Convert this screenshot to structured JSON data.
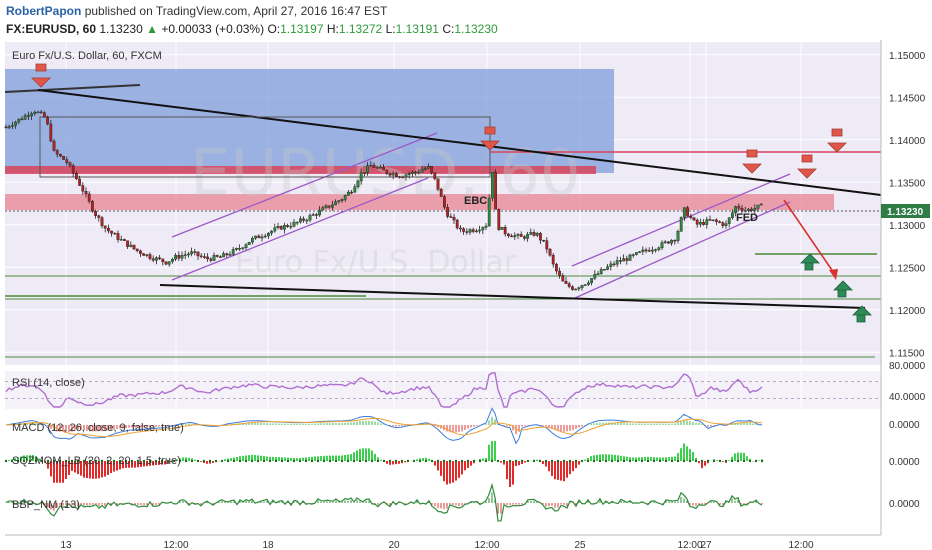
{
  "header": {
    "author": "RobertPapon",
    "published_text": "published on TradingView.com, April 27, 2016 16:47 EST",
    "symbol_interval": "FX:EURUSD, 60",
    "last": "1.13230",
    "change": "+0.00033 (+0.03%)",
    "o_label": "O:",
    "o_value": "1.13197",
    "h_label": "H:",
    "h_value": "1.13272",
    "l_label": "L:",
    "l_value": "1.13191",
    "c_label": "C:",
    "c_value": "1.13230"
  },
  "main_pane": {
    "title": "Euro Fx/U.S. Dollar, 60, FXCM",
    "watermark_symbol": "EURUSD, 60",
    "watermark_name": "Euro Fx/U.S. Dollar",
    "price_ticks": [
      "1.15000",
      "1.14500",
      "1.14000",
      "1.13500",
      "1.13000",
      "1.12500",
      "1.12000",
      "1.11500"
    ],
    "last_price_tag": "1.13230",
    "annotations": [
      "EBC",
      "FED"
    ]
  },
  "indicators": [
    {
      "label": "RSI (14, close)",
      "ticks": [
        "80.0000",
        "40.0000"
      ]
    },
    {
      "label": "MACD (12, 26, close, 9, false, true)",
      "ticks": [
        "0.0000"
      ]
    },
    {
      "label": "SQZMOM_LB (20, 2, 20, 1.5, true)",
      "ticks": [
        "0.0000"
      ]
    },
    {
      "label": "BBP_NM (13)",
      "ticks": [
        "0.0000"
      ]
    }
  ],
  "time_axis": [
    "13",
    "12:00",
    "18",
    "12:00",
    "20",
    "12:00",
    "25",
    "12:00",
    "27",
    "12:00"
  ],
  "colors": {
    "up_candle": "#2e8b3a",
    "down_candle": "#b22222",
    "blue_zone": "#7f9edb",
    "red_zone": "#d9455b",
    "pink_zone": "#e88a99",
    "trendline": "#111111",
    "channel": "#9b59c6",
    "arrow_down": "#e0574a",
    "arrow_up": "#2e8b57",
    "rsi": "#b06fd0",
    "macd": "#3b7dd8",
    "signal": "#f0a030"
  },
  "chart_data": {
    "type": "candlestick",
    "symbol": "FX:EURUSD",
    "interval": "60",
    "ylim": [
      1.1135,
      1.1515
    ],
    "x_labels": [
      "13",
      "12:00",
      "18",
      "12:00",
      "20",
      "12:00",
      "25",
      "12:00",
      "27",
      "12:00"
    ],
    "path_keypoints": [
      [
        0,
        1.1415
      ],
      [
        15,
        1.1425
      ],
      [
        28,
        1.1435
      ],
      [
        40,
        1.1425
      ],
      [
        48,
        1.1385
      ],
      [
        60,
        1.1375
      ],
      [
        75,
        1.1345
      ],
      [
        88,
        1.1315
      ],
      [
        100,
        1.1295
      ],
      [
        115,
        1.1282
      ],
      [
        130,
        1.127
      ],
      [
        145,
        1.1262
      ],
      [
        160,
        1.1256
      ],
      [
        170,
        1.1262
      ],
      [
        185,
        1.1267
      ],
      [
        200,
        1.126
      ],
      [
        215,
        1.1262
      ],
      [
        230,
        1.127
      ],
      [
        245,
        1.1282
      ],
      [
        260,
        1.129
      ],
      [
        275,
        1.1297
      ],
      [
        290,
        1.1302
      ],
      [
        305,
        1.131
      ],
      [
        320,
        1.132
      ],
      [
        335,
        1.133
      ],
      [
        345,
        1.134
      ],
      [
        355,
        1.136
      ],
      [
        365,
        1.137
      ],
      [
        380,
        1.1362
      ],
      [
        395,
        1.1358
      ],
      [
        410,
        1.1362
      ],
      [
        422,
        1.1368
      ],
      [
        430,
        1.135
      ],
      [
        440,
        1.1315
      ],
      [
        455,
        1.1292
      ],
      [
        470,
        1.1295
      ],
      [
        480,
        1.13
      ],
      [
        488,
        1.138
      ],
      [
        490,
        1.13
      ],
      [
        500,
        1.129
      ],
      [
        515,
        1.1285
      ],
      [
        530,
        1.129
      ],
      [
        540,
        1.1275
      ],
      [
        548,
        1.125
      ],
      [
        558,
        1.123
      ],
      [
        568,
        1.1225
      ],
      [
        580,
        1.1232
      ],
      [
        595,
        1.1245
      ],
      [
        610,
        1.1256
      ],
      [
        625,
        1.1262
      ],
      [
        640,
        1.127
      ],
      [
        655,
        1.1276
      ],
      [
        670,
        1.1285
      ],
      [
        678,
        1.1318
      ],
      [
        690,
        1.13
      ],
      [
        705,
        1.1305
      ],
      [
        720,
        1.13
      ],
      [
        730,
        1.1322
      ],
      [
        740,
        1.1317
      ],
      [
        750,
        1.132
      ],
      [
        760,
        1.1323
      ]
    ],
    "annotations": [
      {
        "text": "EBC",
        "x_label": "20 12:00"
      },
      {
        "text": "FED",
        "x_label": "27"
      }
    ],
    "horizontal_levels": [
      1.1396,
      1.1297,
      1.1272,
      1.1243,
      1.1213,
      1.1158
    ],
    "zones": [
      {
        "type": "resistance",
        "from": 1.1367,
        "to": 1.1375
      },
      {
        "type": "resistance",
        "from": 1.1322,
        "to": 1.1335
      },
      {
        "type": "supply",
        "from": 1.1392,
        "to": 1.1495
      }
    ]
  }
}
